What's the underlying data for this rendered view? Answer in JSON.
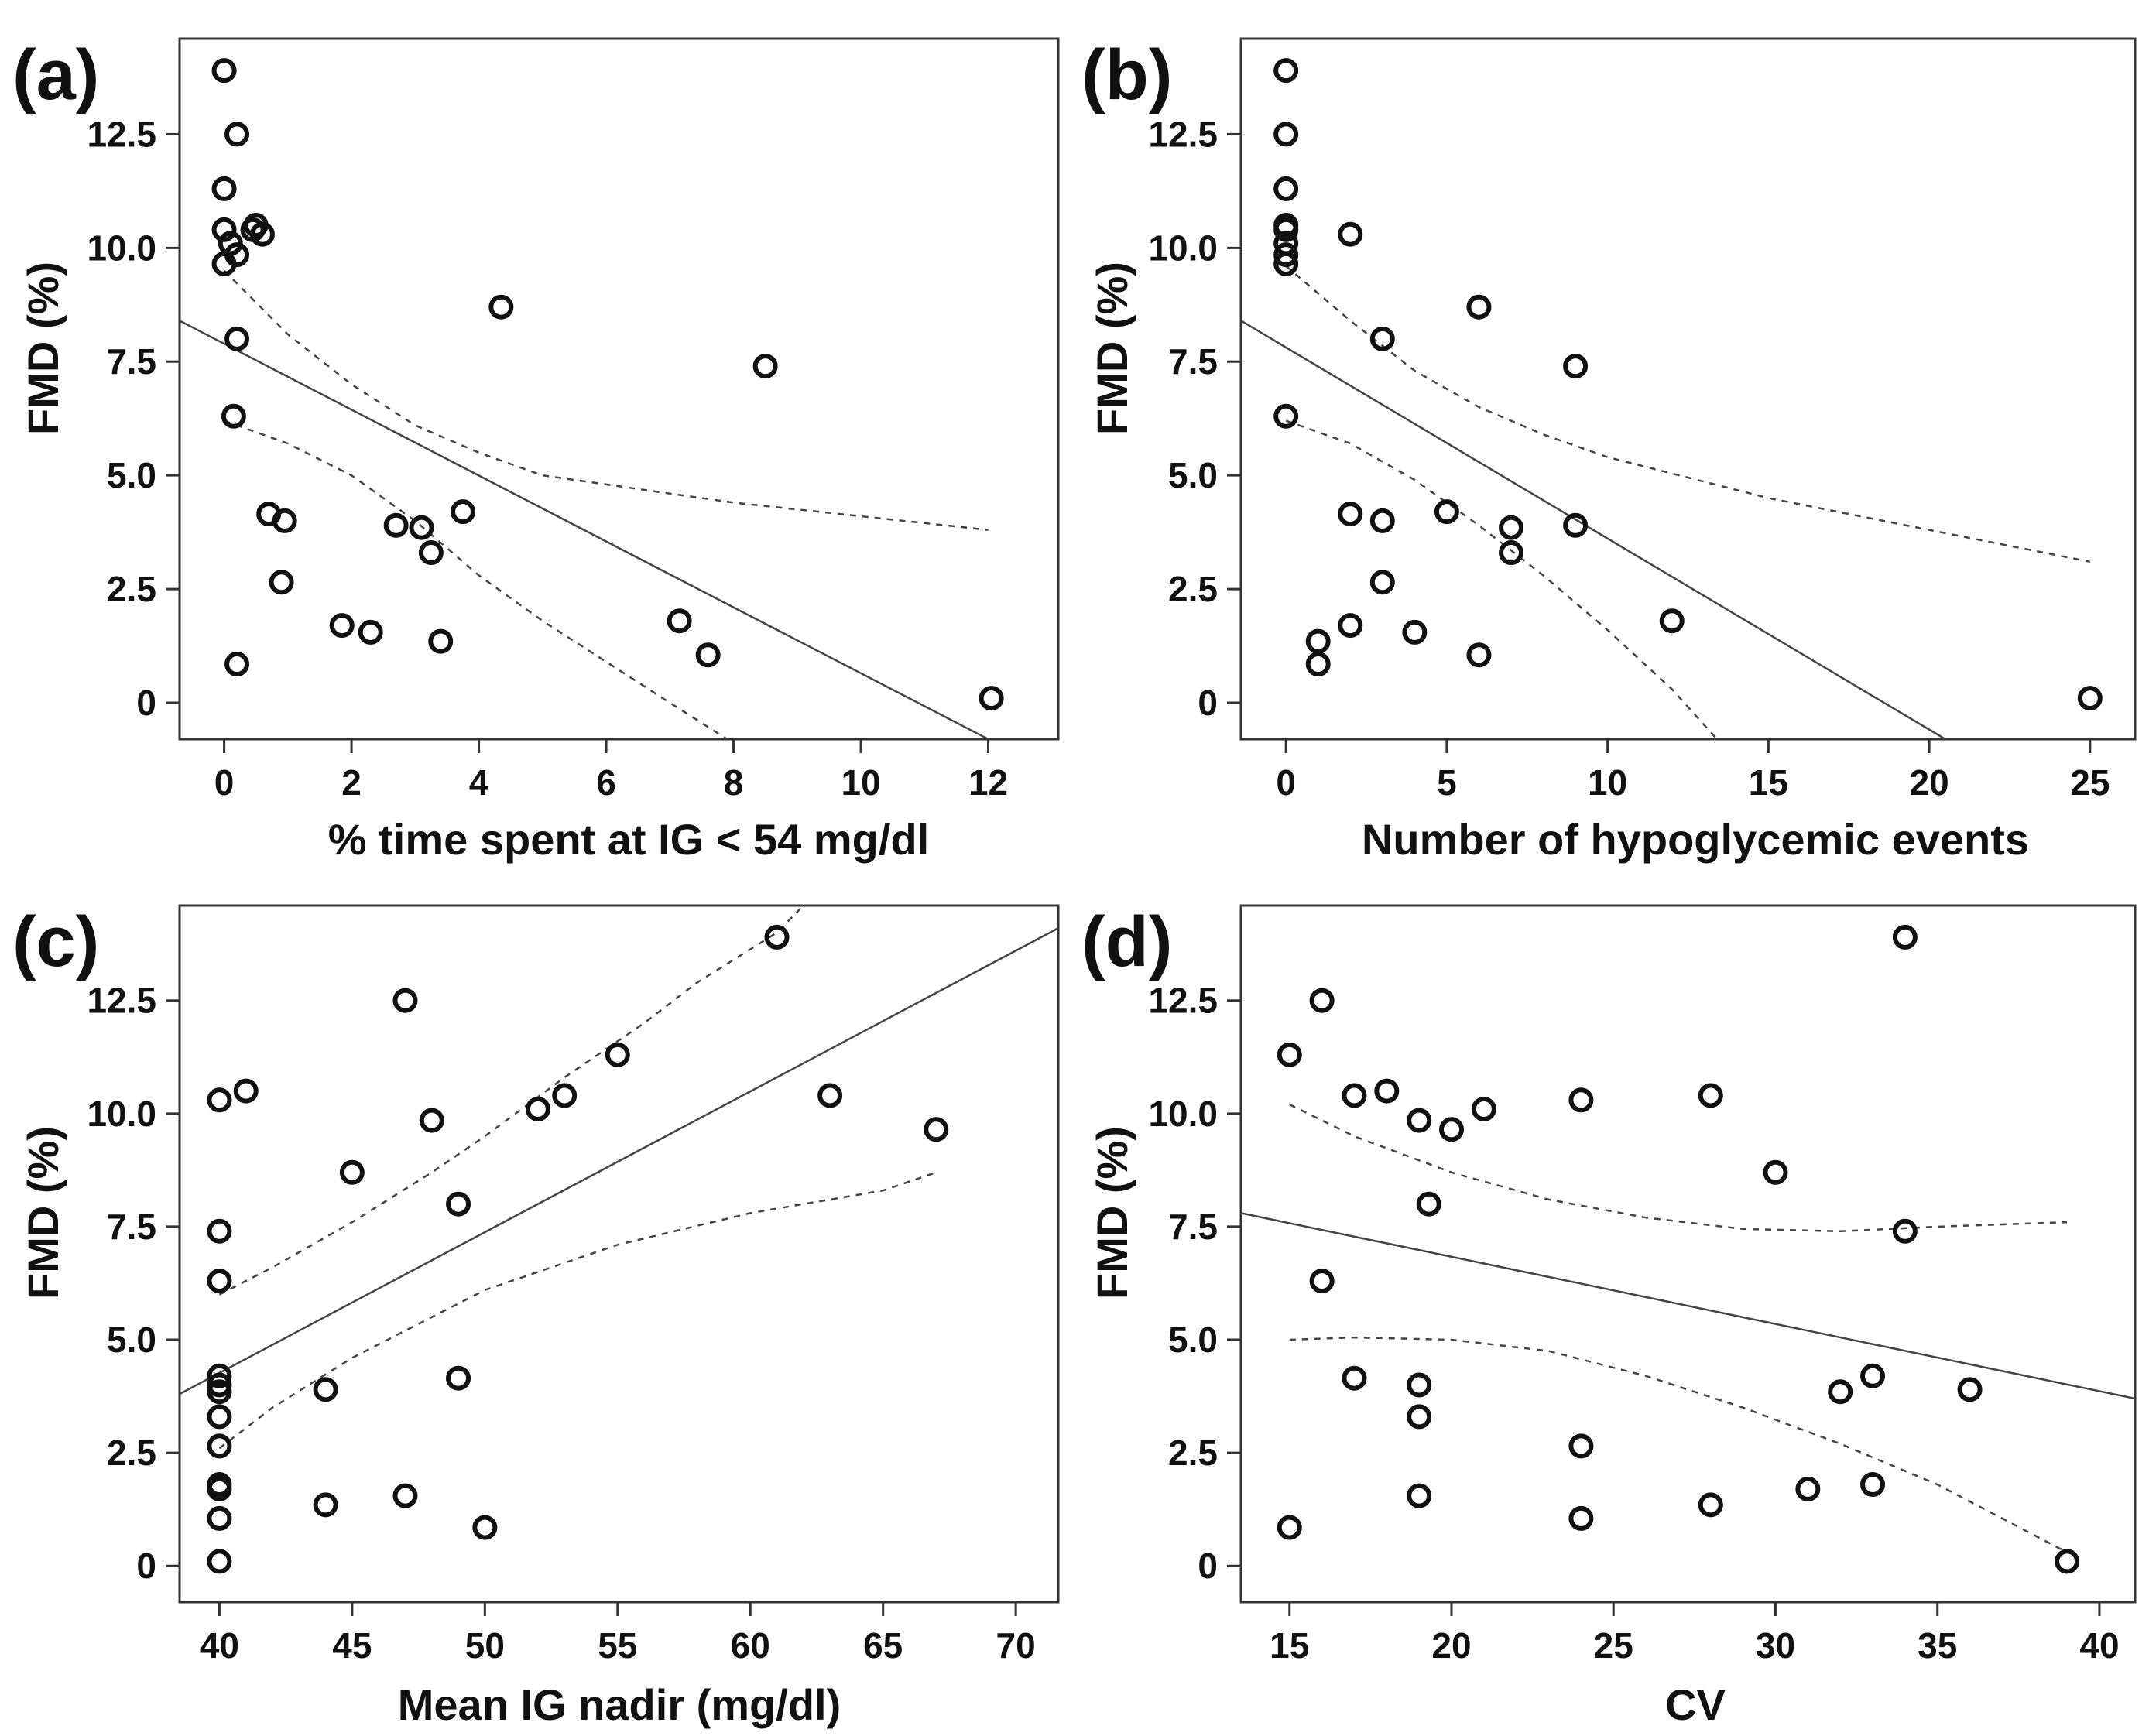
{
  "chart_data": [
    {
      "type": "scatter",
      "panel_label": "(a)",
      "xlabel": "% time spent at IG < 54 mg/dl",
      "ylabel": "FMD (%)",
      "xlim": [
        -0.7,
        13.1
      ],
      "ylim": [
        -0.8,
        14.6
      ],
      "xticks": [
        0,
        2,
        4,
        6,
        8,
        10,
        12
      ],
      "xtick_labels": [
        "0",
        "2",
        "4",
        "6",
        "8",
        "10",
        "12"
      ],
      "yticks": [
        0,
        2.5,
        5,
        7.5,
        10,
        12.5
      ],
      "ytick_labels": [
        "0",
        "2.5",
        "5.0",
        "7.5",
        "10.0",
        "12.5"
      ],
      "points": [
        [
          0,
          13.9
        ],
        [
          0.2,
          12.5
        ],
        [
          0,
          11.3
        ],
        [
          0,
          10.4
        ],
        [
          0.5,
          10.5
        ],
        [
          0.45,
          10.4
        ],
        [
          0.6,
          10.3
        ],
        [
          0.1,
          10.1
        ],
        [
          0.2,
          9.85
        ],
        [
          0,
          9.65
        ],
        [
          0.2,
          8.0
        ],
        [
          0.15,
          6.3
        ],
        [
          0.7,
          4.15
        ],
        [
          0.95,
          4.0
        ],
        [
          0.9,
          2.65
        ],
        [
          0.2,
          0.85
        ],
        [
          1.85,
          1.7
        ],
        [
          2.3,
          1.55
        ],
        [
          2.7,
          3.9
        ],
        [
          3.1,
          3.85
        ],
        [
          3.25,
          3.3
        ],
        [
          3.4,
          1.35
        ],
        [
          3.75,
          4.2
        ],
        [
          4.35,
          8.7
        ],
        [
          7.15,
          1.8
        ],
        [
          7.6,
          1.05
        ],
        [
          8.5,
          7.4
        ],
        [
          12.05,
          0.1
        ]
      ],
      "fit_line": [
        [
          -0.7,
          8.4
        ],
        [
          12.0,
          -0.8
        ]
      ],
      "ci_upper": [
        [
          0,
          9.5
        ],
        [
          1,
          8.1
        ],
        [
          2,
          7.0
        ],
        [
          3,
          6.1
        ],
        [
          4,
          5.5
        ],
        [
          5,
          5.0
        ],
        [
          6,
          4.8
        ],
        [
          8,
          4.4
        ],
        [
          10,
          4.1
        ],
        [
          12,
          3.8
        ]
      ],
      "ci_lower": [
        [
          0,
          6.2
        ],
        [
          1,
          5.7
        ],
        [
          2,
          5.0
        ],
        [
          3,
          4.0
        ],
        [
          4,
          2.8
        ],
        [
          5,
          1.8
        ],
        [
          6,
          0.9
        ],
        [
          7,
          0.0
        ],
        [
          7.9,
          -0.8
        ]
      ]
    },
    {
      "type": "scatter",
      "panel_label": "(b)",
      "xlabel": "Number of hypoglycemic events",
      "ylabel": "FMD (%)",
      "xlim": [
        -1.4,
        26.4
      ],
      "ylim": [
        -0.8,
        14.6
      ],
      "xticks": [
        0,
        5,
        10,
        15,
        20,
        25
      ],
      "xtick_labels": [
        "0",
        "5",
        "10",
        "15",
        "20",
        "25"
      ],
      "yticks": [
        0,
        2.5,
        5,
        7.5,
        10,
        12.5
      ],
      "ytick_labels": [
        "0",
        "2.5",
        "5.0",
        "7.5",
        "10.0",
        "12.5"
      ],
      "points": [
        [
          0,
          13.9
        ],
        [
          0,
          12.5
        ],
        [
          0,
          11.3
        ],
        [
          0,
          10.5
        ],
        [
          0,
          10.4
        ],
        [
          0,
          10.1
        ],
        [
          0,
          9.85
        ],
        [
          0,
          9.65
        ],
        [
          0,
          6.3
        ],
        [
          1,
          1.35
        ],
        [
          1,
          0.85
        ],
        [
          2,
          10.3
        ],
        [
          2,
          4.15
        ],
        [
          2,
          1.7
        ],
        [
          3,
          8.0
        ],
        [
          3,
          4.0
        ],
        [
          3,
          2.65
        ],
        [
          4,
          1.55
        ],
        [
          5,
          4.2
        ],
        [
          6,
          8.7
        ],
        [
          6,
          1.05
        ],
        [
          7,
          3.85
        ],
        [
          7,
          3.3
        ],
        [
          9,
          7.4
        ],
        [
          9,
          3.9
        ],
        [
          12,
          1.8
        ],
        [
          25,
          0.1
        ]
      ],
      "fit_line": [
        [
          -1.4,
          8.4
        ],
        [
          20.5,
          -0.8
        ]
      ],
      "ci_upper": [
        [
          0,
          9.6
        ],
        [
          2,
          8.4
        ],
        [
          4,
          7.3
        ],
        [
          6,
          6.5
        ],
        [
          8,
          5.9
        ],
        [
          10,
          5.4
        ],
        [
          15,
          4.5
        ],
        [
          20,
          3.8
        ],
        [
          25,
          3.1
        ]
      ],
      "ci_lower": [
        [
          0,
          6.2
        ],
        [
          2,
          5.7
        ],
        [
          4,
          4.9
        ],
        [
          6,
          3.9
        ],
        [
          8,
          2.8
        ],
        [
          10,
          1.6
        ],
        [
          12,
          0.3
        ],
        [
          13.4,
          -0.8
        ]
      ]
    },
    {
      "type": "scatter",
      "panel_label": "(c)",
      "xlabel": "Mean IG nadir (mg/dl)",
      "ylabel": "FMD (%)",
      "xlim": [
        38.5,
        71.6
      ],
      "ylim": [
        -0.8,
        14.6
      ],
      "xticks": [
        40,
        45,
        50,
        55,
        60,
        65,
        70
      ],
      "xtick_labels": [
        "40",
        "45",
        "50",
        "55",
        "60",
        "65",
        "70"
      ],
      "yticks": [
        0,
        2.5,
        5,
        7.5,
        10,
        12.5
      ],
      "ytick_labels": [
        "0",
        "2.5",
        "5.0",
        "7.5",
        "10.0",
        "12.5"
      ],
      "points": [
        [
          40,
          10.3
        ],
        [
          40,
          7.4
        ],
        [
          40,
          6.3
        ],
        [
          40,
          4.2
        ],
        [
          40,
          4.0
        ],
        [
          40,
          3.85
        ],
        [
          40,
          3.3
        ],
        [
          40,
          2.65
        ],
        [
          40,
          1.8
        ],
        [
          40,
          1.7
        ],
        [
          40,
          1.05
        ],
        [
          40,
          0.1
        ],
        [
          41,
          10.5
        ],
        [
          44,
          3.9
        ],
        [
          44,
          1.35
        ],
        [
          45,
          8.7
        ],
        [
          47,
          12.5
        ],
        [
          47,
          1.55
        ],
        [
          48,
          9.85
        ],
        [
          49,
          8.0
        ],
        [
          49,
          4.15
        ],
        [
          50,
          0.85
        ],
        [
          52,
          10.1
        ],
        [
          53,
          10.4
        ],
        [
          55,
          11.3
        ],
        [
          61,
          13.9
        ],
        [
          63,
          10.4
        ],
        [
          67,
          9.65
        ]
      ],
      "fit_line": [
        [
          38.5,
          3.8
        ],
        [
          71.6,
          14.1
        ]
      ],
      "ci_upper": [
        [
          40,
          6.0
        ],
        [
          42,
          6.6
        ],
        [
          45,
          7.6
        ],
        [
          48,
          8.7
        ],
        [
          50,
          9.5
        ],
        [
          53,
          10.8
        ],
        [
          56,
          12.0
        ],
        [
          58,
          12.9
        ],
        [
          61,
          14.0
        ],
        [
          62,
          14.6
        ]
      ],
      "ci_lower": [
        [
          40,
          2.6
        ],
        [
          42,
          3.5
        ],
        [
          45,
          4.6
        ],
        [
          48,
          5.5
        ],
        [
          50,
          6.1
        ],
        [
          55,
          7.1
        ],
        [
          60,
          7.8
        ],
        [
          65,
          8.3
        ],
        [
          67,
          8.7
        ]
      ]
    },
    {
      "type": "scatter",
      "panel_label": "(d)",
      "xlabel": "CV",
      "ylabel": "FMD (%)",
      "xlim": [
        13.5,
        41.1
      ],
      "ylim": [
        -0.8,
        14.6
      ],
      "xticks": [
        15,
        20,
        25,
        30,
        35,
        40
      ],
      "xtick_labels": [
        "15",
        "20",
        "25",
        "30",
        "35",
        "40"
      ],
      "yticks": [
        0,
        2.5,
        5,
        7.5,
        10,
        12.5
      ],
      "ytick_labels": [
        "0",
        "2.5",
        "5.0",
        "7.5",
        "10.0",
        "12.5"
      ],
      "points": [
        [
          15,
          11.3
        ],
        [
          15,
          0.85
        ],
        [
          16,
          12.5
        ],
        [
          16,
          6.3
        ],
        [
          17,
          10.4
        ],
        [
          17,
          4.15
        ],
        [
          18,
          10.5
        ],
        [
          19,
          9.85
        ],
        [
          19,
          4.0
        ],
        [
          19,
          3.3
        ],
        [
          19,
          1.55
        ],
        [
          19.3,
          8.0
        ],
        [
          20,
          9.65
        ],
        [
          21,
          10.1
        ],
        [
          24,
          10.3
        ],
        [
          24,
          2.65
        ],
        [
          24,
          1.05
        ],
        [
          28,
          10.4
        ],
        [
          28,
          1.35
        ],
        [
          30,
          8.7
        ],
        [
          31,
          1.7
        ],
        [
          32,
          3.85
        ],
        [
          33,
          4.2
        ],
        [
          33,
          1.8
        ],
        [
          34,
          13.9
        ],
        [
          34,
          7.4
        ],
        [
          36,
          3.9
        ],
        [
          39,
          0.1
        ]
      ],
      "fit_line": [
        [
          13.5,
          7.8
        ],
        [
          41.1,
          3.7
        ]
      ],
      "ci_upper": [
        [
          15,
          10.2
        ],
        [
          17,
          9.5
        ],
        [
          20,
          8.7
        ],
        [
          23,
          8.1
        ],
        [
          26,
          7.7
        ],
        [
          29,
          7.45
        ],
        [
          32,
          7.4
        ],
        [
          35,
          7.5
        ],
        [
          39,
          7.6
        ]
      ],
      "ci_lower": [
        [
          15,
          5.0
        ],
        [
          17,
          5.05
        ],
        [
          20,
          5.0
        ],
        [
          23,
          4.75
        ],
        [
          26,
          4.2
        ],
        [
          29,
          3.5
        ],
        [
          32,
          2.7
        ],
        [
          35,
          1.8
        ],
        [
          39,
          0.3
        ]
      ]
    }
  ]
}
